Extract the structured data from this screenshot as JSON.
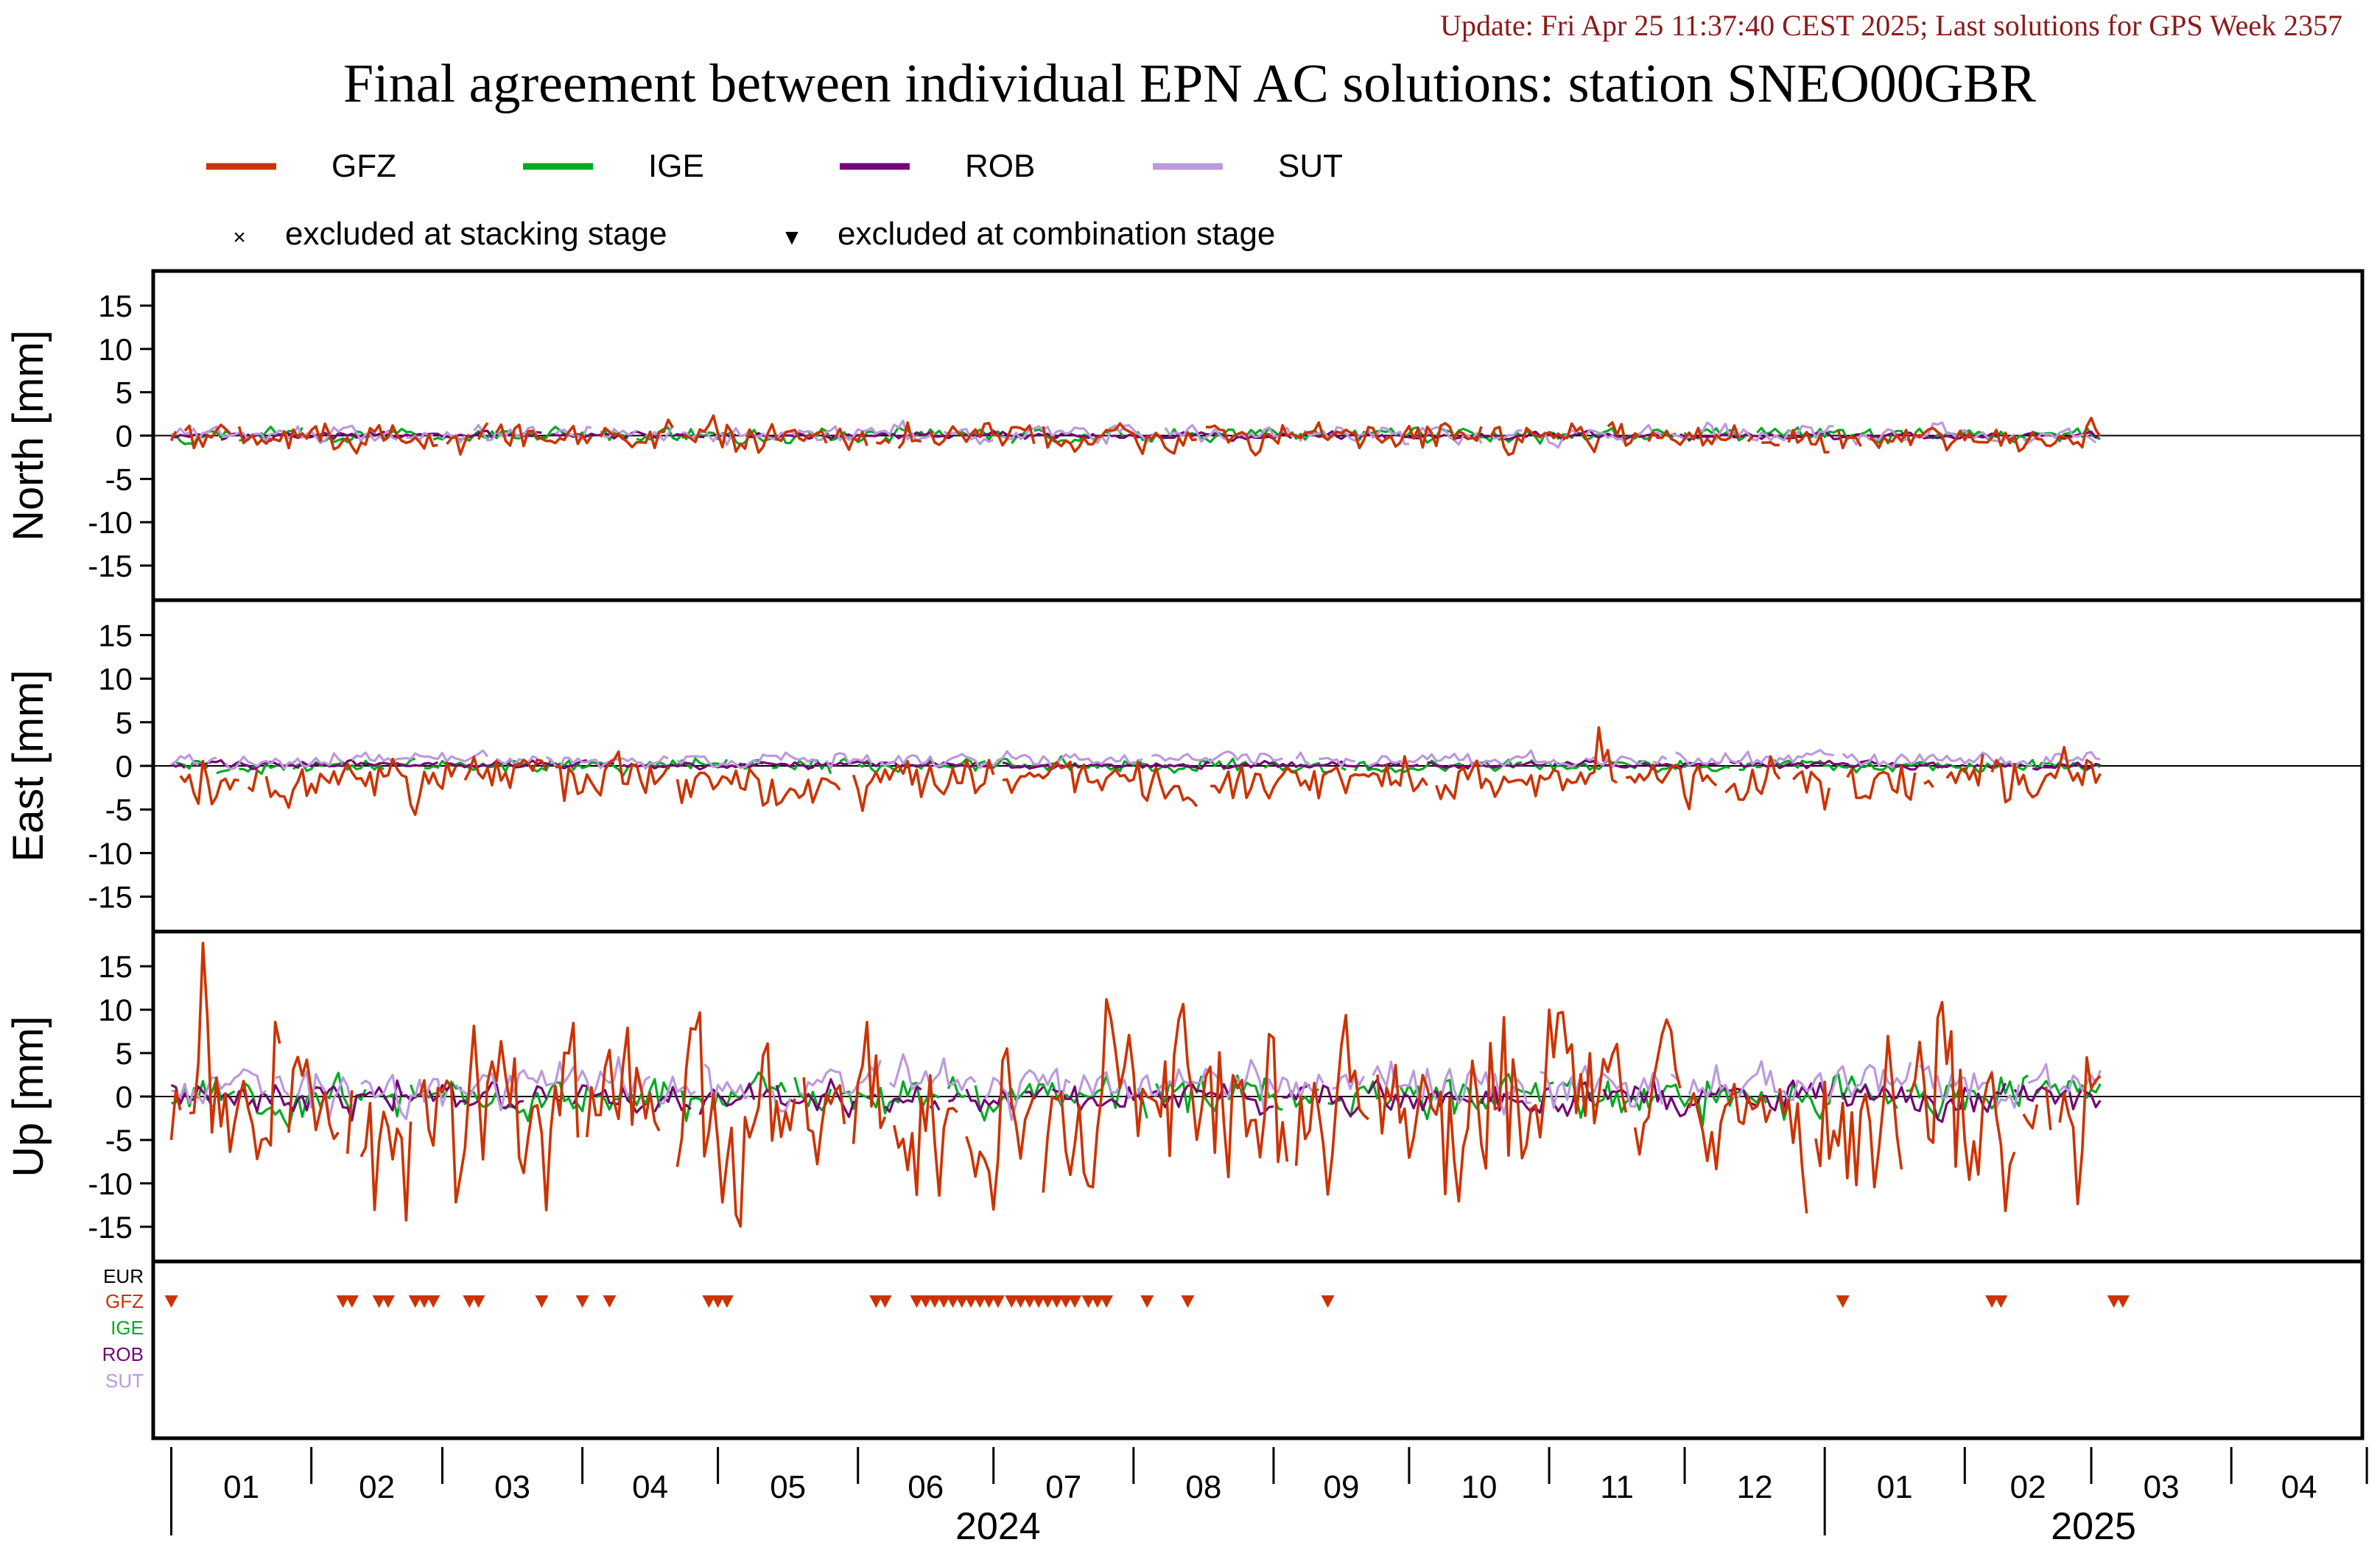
{
  "header": {
    "update_text": "Update: Fri Apr 25 11:37:40 CEST 2025; Last solutions for GPS Week 2357",
    "update_color": "#8b1a1a",
    "title": "Final agreement between individual EPN AC solutions: station SNEO00GBR"
  },
  "legend": {
    "series": [
      {
        "name": "GFZ",
        "color": "#cc3300"
      },
      {
        "name": "IGE",
        "color": "#00aa22"
      },
      {
        "name": "ROB",
        "color": "#770077"
      },
      {
        "name": "SUT",
        "color": "#bb99dd"
      }
    ],
    "markers": [
      {
        "symbol": "×",
        "label": "excluded at stacking stage"
      },
      {
        "symbol": "▼",
        "label": "excluded at combination stage"
      }
    ]
  },
  "chart_data": {
    "type": "line",
    "x_axis": {
      "range": [
        "2023-12-28",
        "2025-04-30"
      ],
      "month_labels": [
        "01",
        "02",
        "03",
        "04",
        "05",
        "06",
        "07",
        "08",
        "09",
        "10",
        "11",
        "12",
        "01",
        "02",
        "03",
        "04"
      ],
      "year_labels": [
        "2024",
        "2025"
      ]
    },
    "panels": [
      {
        "ylabel": "North [mm]",
        "ylim": [
          -19,
          19
        ],
        "yticks": [
          15,
          10,
          5,
          0,
          -5,
          -10,
          -15
        ],
        "series": [
          {
            "name": "GFZ",
            "amplitude": 0.8,
            "bias": -0.2
          },
          {
            "name": "IGE",
            "amplitude": 0.4,
            "bias": 0.1
          },
          {
            "name": "ROB",
            "amplitude": 0.2,
            "bias": 0.0
          },
          {
            "name": "SUT",
            "amplitude": 0.5,
            "bias": 0.2
          }
        ]
      },
      {
        "ylabel": "East [mm]",
        "ylim": [
          -19,
          19
        ],
        "yticks": [
          15,
          10,
          5,
          0,
          -5,
          -10,
          -15
        ],
        "series": [
          {
            "name": "GFZ",
            "amplitude": 1.3,
            "bias": -1.8
          },
          {
            "name": "IGE",
            "amplitude": 0.4,
            "bias": 0.0
          },
          {
            "name": "ROB",
            "amplitude": 0.2,
            "bias": 0.1
          },
          {
            "name": "SUT",
            "amplitude": 0.4,
            "bias": 0.7
          }
        ]
      },
      {
        "ylabel": "Up [mm]",
        "ylim": [
          -19,
          19
        ],
        "yticks": [
          15,
          10,
          5,
          0,
          -5,
          -10,
          -15
        ],
        "series": [
          {
            "name": "GFZ",
            "amplitude": 4.5,
            "bias": -1.5
          },
          {
            "name": "IGE",
            "amplitude": 1.2,
            "bias": 0.0
          },
          {
            "name": "ROB",
            "amplitude": 0.9,
            "bias": 0.0
          },
          {
            "name": "SUT",
            "amplitude": 1.3,
            "bias": 1.2
          }
        ]
      }
    ],
    "exclusion_panel": {
      "rows": [
        "EUR",
        "GFZ",
        "IGE",
        "ROB",
        "SUT"
      ],
      "row_colors": [
        "#000000",
        "#cc3300",
        "#00aa22",
        "#770077",
        "#bb99dd"
      ],
      "gfz_combination_exclusions": [
        "2024-01-01",
        "2024-02-08",
        "2024-02-10",
        "2024-02-16",
        "2024-02-18",
        "2024-02-24",
        "2024-02-26",
        "2024-02-28",
        "2024-03-07",
        "2024-03-09",
        "2024-03-23",
        "2024-04-01",
        "2024-04-07",
        "2024-04-29",
        "2024-05-01",
        "2024-05-03",
        "2024-06-05",
        "2024-06-07",
        "2024-06-14",
        "2024-06-16",
        "2024-06-18",
        "2024-06-20",
        "2024-06-22",
        "2024-06-24",
        "2024-06-26",
        "2024-06-28",
        "2024-06-30",
        "2024-07-02",
        "2024-07-05",
        "2024-07-07",
        "2024-07-09",
        "2024-07-11",
        "2024-07-13",
        "2024-07-15",
        "2024-07-17",
        "2024-07-19",
        "2024-07-22",
        "2024-07-24",
        "2024-07-26",
        "2024-08-04",
        "2024-08-13",
        "2024-09-13",
        "2025-01-05",
        "2025-02-07",
        "2025-02-09",
        "2025-03-06",
        "2025-03-08"
      ]
    }
  }
}
